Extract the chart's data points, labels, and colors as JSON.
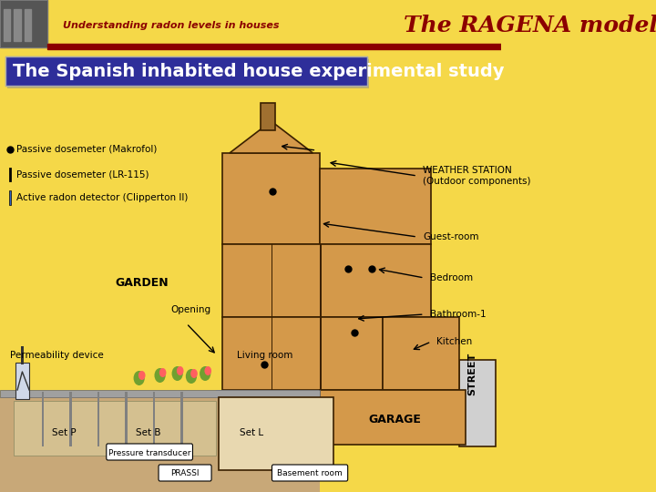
{
  "bg_color": "#F5D848",
  "header_bg": "#F5D848",
  "title_main": "The RAGENA model",
  "title_sub": "Understanding radon levels in houses",
  "slide_title": "The Spanish inhabited house experimental study",
  "slide_title_bg": "#2E2E9A",
  "slide_title_color": "#FFFFFF",
  "house_color": "#D4994A",
  "house_dark": "#C08030",
  "house_outline": "#3A2000",
  "ground_color": "#C8A060",
  "soil_color": "#B07840",
  "separator_color": "#8B0000",
  "legend_dot_text": "Passive dosemeter (Makrofol)",
  "legend_line1_text": "Passive dosemeter (LR-115)",
  "legend_line2_text": "Active radon detector (Clipperton II)",
  "label_weather": "WEATHER STATION\n(Outdoor components)",
  "label_guestroom": "Guest-room",
  "label_bedroom": "Bedroom",
  "label_bathroom": "Bathroom-1",
  "label_kitchen": "Kitchen",
  "label_street": "STREET",
  "label_garden": "GARDEN",
  "label_opening": "Opening",
  "label_permeability": "Permeability device",
  "label_livingroom": "Living room",
  "label_garage": "GARAGE",
  "label_setp": "Set P",
  "label_setb": "Set B",
  "label_setl": "Set L",
  "label_pressure": "Pressure transducer",
  "label_prassi": "PRASSI",
  "label_basement": "Basement room"
}
